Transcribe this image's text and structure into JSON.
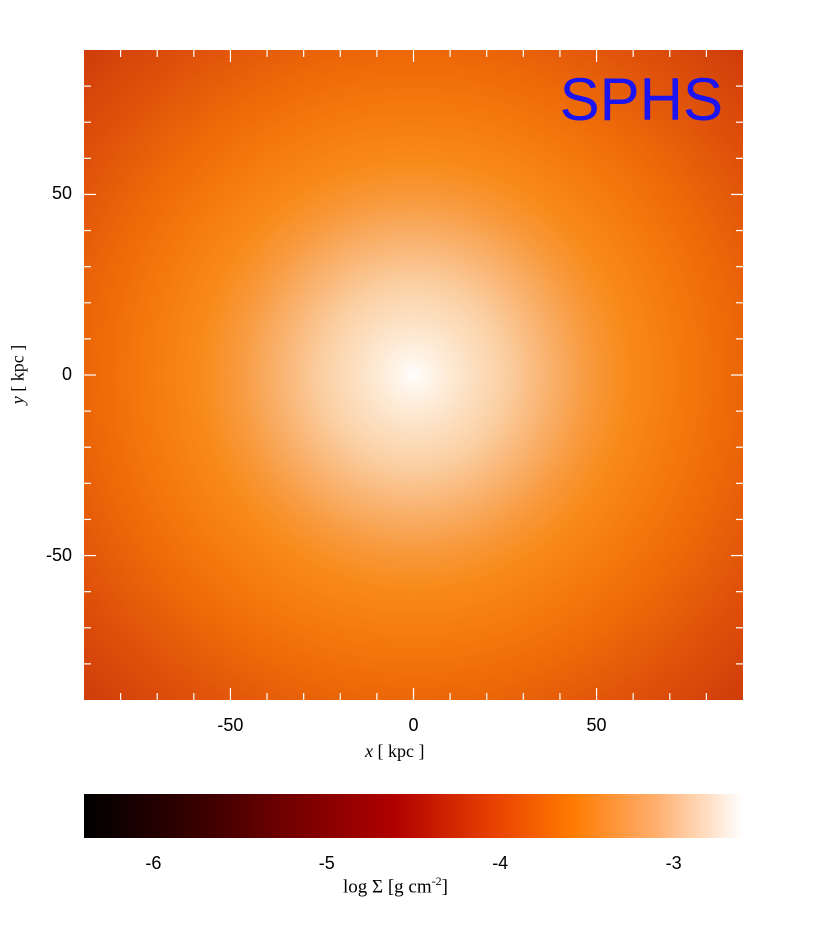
{
  "chart_data": {
    "type": "heatmap",
    "annotation": "SPHS",
    "xlabel": "x [ kpc ]",
    "ylabel": "y [ kpc ]",
    "xlim": [
      -90,
      90
    ],
    "ylim": [
      -90,
      90
    ],
    "x_ticks": [
      -50,
      0,
      50
    ],
    "y_ticks": [
      50,
      0,
      -50
    ],
    "x_tick_labels": [
      "-50",
      "0",
      "50"
    ],
    "y_tick_labels": [
      "50",
      "0",
      "-50"
    ],
    "colorbar": {
      "label": "log Σ [g cm⁻²]",
      "range": [
        -6.4,
        -2.6
      ],
      "ticks": [
        -6,
        -5,
        -4,
        -3
      ],
      "tick_labels": [
        "-6",
        "-5",
        "-4",
        "-3"
      ],
      "colormap": [
        "#000000",
        "#3a0000",
        "#7a0000",
        "#b00000",
        "#e84000",
        "#ff7a00",
        "#ffb070",
        "#ffffff"
      ]
    },
    "field": {
      "description_values": "surface density log Σ, peaked at center",
      "center_value": -2.6,
      "edge_value": -4.2
    }
  }
}
